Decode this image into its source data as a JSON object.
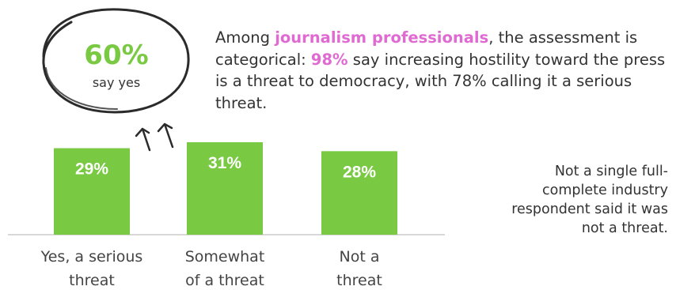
{
  "chart_data": {
    "type": "bar",
    "categories": [
      "Yes, a serious threat",
      "Somewhat of a threat",
      "Not a threat"
    ],
    "category_lines": [
      [
        "Yes, a serious",
        "threat"
      ],
      [
        "Somewhat",
        "of a threat"
      ],
      [
        "Not a",
        "threat"
      ]
    ],
    "values": [
      29,
      31,
      28
    ],
    "value_labels": [
      "29%",
      "31%",
      "28%"
    ],
    "bar_color": "#7ac943",
    "value_label_color": "#ffffff"
  },
  "callout": {
    "value": "60%",
    "label": "say yes",
    "value_color": "#7ac943"
  },
  "headline": {
    "before": "Among ",
    "highlight_1": "journalism professionals",
    "middle": ", the assessment is categorical: ",
    "highlight_2": "98%",
    "after": " say increasing hostility toward the press is a threat to democracy, with 78%  calling it a serious threat.",
    "highlight_color": "#e06ad2"
  },
  "side_note": {
    "text": "Not a single full-complete industry respondent said it was not a threat."
  }
}
